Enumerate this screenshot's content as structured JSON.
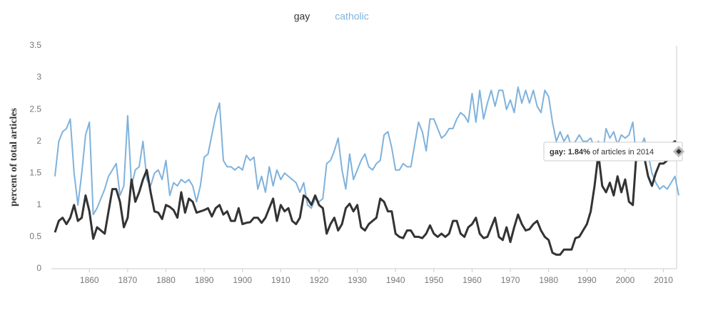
{
  "chart_data": {
    "type": "line",
    "y_label": "percent of total articles",
    "x": [
      1851,
      1852,
      1853,
      1854,
      1855,
      1856,
      1857,
      1858,
      1859,
      1860,
      1861,
      1862,
      1863,
      1864,
      1865,
      1866,
      1867,
      1868,
      1869,
      1870,
      1871,
      1872,
      1873,
      1874,
      1875,
      1876,
      1877,
      1878,
      1879,
      1880,
      1881,
      1882,
      1883,
      1884,
      1885,
      1886,
      1887,
      1888,
      1889,
      1890,
      1891,
      1892,
      1893,
      1894,
      1895,
      1896,
      1897,
      1898,
      1899,
      1900,
      1901,
      1902,
      1903,
      1904,
      1905,
      1906,
      1907,
      1908,
      1909,
      1910,
      1911,
      1912,
      1913,
      1914,
      1915,
      1916,
      1917,
      1918,
      1919,
      1920,
      1921,
      1922,
      1923,
      1924,
      1925,
      1926,
      1927,
      1928,
      1929,
      1930,
      1931,
      1932,
      1933,
      1934,
      1935,
      1936,
      1937,
      1938,
      1939,
      1940,
      1941,
      1942,
      1943,
      1944,
      1945,
      1946,
      1947,
      1948,
      1949,
      1950,
      1951,
      1952,
      1953,
      1954,
      1955,
      1956,
      1957,
      1958,
      1959,
      1960,
      1961,
      1962,
      1963,
      1964,
      1965,
      1966,
      1967,
      1968,
      1969,
      1970,
      1971,
      1972,
      1973,
      1974,
      1975,
      1976,
      1977,
      1978,
      1979,
      1980,
      1981,
      1982,
      1983,
      1984,
      1985,
      1986,
      1987,
      1988,
      1989,
      1990,
      1991,
      1992,
      1993,
      1994,
      1995,
      1996,
      1997,
      1998,
      1999,
      2000,
      2001,
      2002,
      2003,
      2004,
      2005,
      2006,
      2007,
      2008,
      2009,
      2010,
      2011,
      2012,
      2013,
      2014
    ],
    "series": [
      {
        "name": "gay",
        "color": "#333333",
        "values": [
          0.57,
          0.75,
          0.8,
          0.7,
          0.8,
          1.0,
          0.75,
          0.8,
          1.15,
          0.9,
          0.47,
          0.65,
          0.6,
          0.55,
          0.9,
          1.25,
          1.25,
          1.05,
          0.65,
          0.8,
          1.4,
          1.05,
          1.2,
          1.4,
          1.55,
          1.2,
          0.9,
          0.88,
          0.78,
          1.0,
          0.97,
          0.92,
          0.8,
          1.2,
          0.88,
          1.1,
          1.05,
          0.88,
          0.9,
          0.92,
          0.95,
          0.82,
          0.95,
          1.0,
          0.85,
          0.9,
          0.75,
          0.75,
          0.95,
          0.7,
          0.72,
          0.73,
          0.8,
          0.8,
          0.72,
          0.8,
          0.95,
          1.1,
          0.75,
          1.0,
          0.9,
          0.95,
          0.75,
          0.7,
          0.8,
          1.15,
          1.1,
          1.0,
          1.15,
          1.0,
          0.95,
          0.55,
          0.7,
          0.8,
          0.6,
          0.7,
          0.95,
          1.02,
          0.9,
          1.0,
          0.65,
          0.6,
          0.7,
          0.75,
          0.8,
          1.1,
          1.05,
          0.9,
          0.9,
          0.55,
          0.5,
          0.48,
          0.6,
          0.6,
          0.5,
          0.5,
          0.48,
          0.55,
          0.68,
          0.55,
          0.5,
          0.55,
          0.5,
          0.55,
          0.75,
          0.75,
          0.55,
          0.5,
          0.65,
          0.7,
          0.8,
          0.55,
          0.48,
          0.5,
          0.65,
          0.8,
          0.5,
          0.45,
          0.65,
          0.42,
          0.65,
          0.85,
          0.7,
          0.6,
          0.62,
          0.7,
          0.75,
          0.6,
          0.5,
          0.45,
          0.25,
          0.22,
          0.22,
          0.3,
          0.3,
          0.3,
          0.48,
          0.5,
          0.6,
          0.7,
          0.9,
          1.3,
          1.8,
          1.3,
          1.2,
          1.35,
          1.15,
          1.45,
          1.2,
          1.4,
          1.05,
          1.0,
          1.85,
          1.9,
          1.75,
          1.45,
          1.3,
          1.5,
          1.65,
          1.65,
          1.7,
          1.95,
          2.0,
          1.84
        ]
      },
      {
        "name": "catholic",
        "color": "#7fb2dc",
        "values": [
          1.45,
          2.0,
          2.15,
          2.2,
          2.35,
          1.5,
          1.0,
          1.5,
          2.1,
          2.3,
          0.85,
          0.95,
          1.1,
          1.25,
          1.45,
          1.55,
          1.65,
          1.15,
          1.3,
          2.4,
          1.3,
          1.55,
          1.6,
          2.0,
          1.4,
          1.3,
          1.5,
          1.55,
          1.4,
          1.7,
          1.15,
          1.35,
          1.3,
          1.4,
          1.35,
          1.4,
          1.3,
          1.05,
          1.3,
          1.75,
          1.8,
          2.1,
          2.4,
          2.6,
          1.7,
          1.6,
          1.6,
          1.55,
          1.6,
          1.55,
          1.78,
          1.7,
          1.75,
          1.25,
          1.45,
          1.2,
          1.6,
          1.3,
          1.55,
          1.4,
          1.5,
          1.45,
          1.4,
          1.35,
          1.2,
          1.35,
          1.0,
          0.95,
          1.1,
          1.05,
          1.1,
          1.65,
          1.7,
          1.85,
          2.05,
          1.55,
          1.25,
          1.8,
          1.4,
          1.55,
          1.7,
          1.8,
          1.6,
          1.55,
          1.65,
          1.7,
          2.1,
          2.15,
          1.9,
          1.55,
          1.55,
          1.65,
          1.6,
          1.6,
          1.95,
          2.3,
          2.15,
          1.85,
          2.35,
          2.35,
          2.2,
          2.05,
          2.1,
          2.2,
          2.2,
          2.35,
          2.45,
          2.4,
          2.3,
          2.75,
          2.3,
          2.8,
          2.35,
          2.6,
          2.8,
          2.55,
          2.8,
          2.8,
          2.5,
          2.65,
          2.45,
          2.85,
          2.6,
          2.8,
          2.6,
          2.8,
          2.55,
          2.45,
          2.8,
          2.7,
          2.3,
          2.0,
          2.15,
          2.0,
          2.1,
          1.9,
          2.0,
          2.1,
          2.0,
          2.0,
          2.05,
          1.9,
          2.0,
          1.75,
          2.2,
          2.05,
          2.15,
          1.95,
          2.1,
          2.05,
          2.1,
          2.3,
          1.7,
          1.9,
          2.05,
          1.8,
          1.5,
          1.35,
          1.25,
          1.3,
          1.25,
          1.35,
          1.45,
          1.15
        ]
      }
    ],
    "xlim": [
      1851,
      2014
    ],
    "xticks": [
      1860,
      1870,
      1880,
      1890,
      1900,
      1910,
      1920,
      1930,
      1940,
      1950,
      1960,
      1970,
      1980,
      1990,
      2000,
      2010
    ],
    "ylim": [
      0,
      3.5
    ],
    "yticks": [
      0,
      0.5,
      1,
      1.5,
      2,
      2.5,
      3,
      3.5
    ],
    "tooltip": {
      "series_label": "gay:",
      "value_label": "1.84%",
      "text": "of articles in 2014"
    }
  }
}
